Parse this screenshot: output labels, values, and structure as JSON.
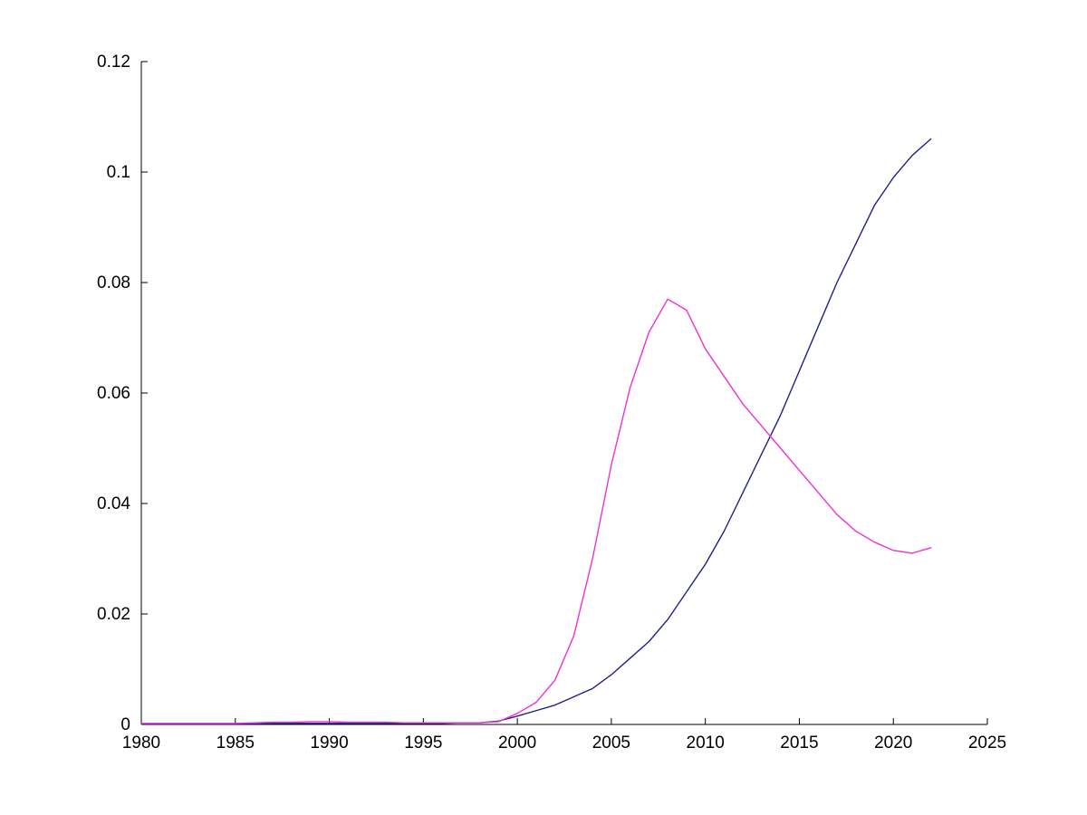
{
  "colors": {
    "background": "#ffffff",
    "axis": "#000000",
    "series1": "#20208a",
    "series2": "#ee30d8"
  },
  "chart_data": {
    "type": "line",
    "title": "",
    "xlabel": "",
    "ylabel": "",
    "xlim": [
      1980,
      2025
    ],
    "ylim": [
      0,
      0.12
    ],
    "grid": false,
    "legend": "none",
    "x_ticks": {
      "values": [
        1980,
        1985,
        1990,
        1995,
        2000,
        2005,
        2010,
        2015,
        2020,
        2025
      ],
      "labels": [
        "1980",
        "1985",
        "1990",
        "1995",
        "2000",
        "2005",
        "2010",
        "2015",
        "2020",
        "2025"
      ]
    },
    "y_ticks": {
      "values": [
        0,
        0.02,
        0.04,
        0.06,
        0.08,
        0.1,
        0.12
      ],
      "labels": [
        "0",
        "0.02",
        "0.04",
        "0.06",
        "0.08",
        "0.1",
        "0.12"
      ]
    },
    "x": [
      1980,
      1981,
      1982,
      1983,
      1984,
      1985,
      1986,
      1987,
      1988,
      1989,
      1990,
      1991,
      1992,
      1993,
      1994,
      1995,
      1996,
      1997,
      1998,
      1999,
      2000,
      2001,
      2002,
      2003,
      2004,
      2005,
      2006,
      2007,
      2008,
      2009,
      2010,
      2011,
      2012,
      2013,
      2014,
      2015,
      2016,
      2017,
      2018,
      2019,
      2020,
      2021,
      2022
    ],
    "series": [
      {
        "name": "dark-blue-line",
        "color": "#20208a",
        "values": [
          0.0001,
          0.0001,
          0.0001,
          0.0001,
          0.0001,
          0.0001,
          0.0001,
          0.0002,
          0.0002,
          0.0002,
          0.0002,
          0.0002,
          0.0002,
          0.0002,
          0.0002,
          0.0002,
          0.0002,
          0.0003,
          0.0003,
          0.0006,
          0.0015,
          0.0025,
          0.0035,
          0.005,
          0.0065,
          0.009,
          0.012,
          0.015,
          0.019,
          0.024,
          0.029,
          0.035,
          0.042,
          0.049,
          0.056,
          0.064,
          0.072,
          0.08,
          0.087,
          0.094,
          0.099,
          0.103,
          0.106
        ]
      },
      {
        "name": "magenta-line",
        "color": "#ee30d8",
        "values": [
          0.0002,
          0.0002,
          0.0002,
          0.0002,
          0.0002,
          0.0002,
          0.0003,
          0.0004,
          0.0004,
          0.0005,
          0.0005,
          0.0004,
          0.0004,
          0.0004,
          0.0003,
          0.0003,
          0.0003,
          0.0003,
          0.0003,
          0.0005,
          0.002,
          0.004,
          0.008,
          0.016,
          0.03,
          0.047,
          0.061,
          0.071,
          0.077,
          0.075,
          0.068,
          0.063,
          0.058,
          0.054,
          0.05,
          0.046,
          0.042,
          0.038,
          0.035,
          0.033,
          0.0315,
          0.031,
          0.032
        ]
      }
    ]
  }
}
